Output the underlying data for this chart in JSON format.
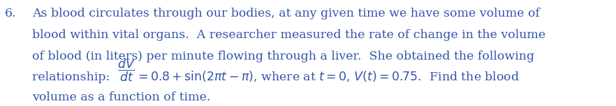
{
  "number": "6.",
  "line1": "As blood circulates through our bodies, at any given time we have some volume of",
  "line2": "blood within vital organs.  A researcher measured the rate of change in the volume",
  "line3": "of blood (in liters) per minute flowing through a liver.  She obtained the following",
  "line4_pre": "relationship:  ",
  "line4_frac": "$\\dfrac{dV}{dt}$",
  "line4_post": "$= 0.8 + \\sin(2\\pi t - \\pi)$, where at $t = 0$, $V(t) = 0.75$.  Find the blood",
  "line5": "volume as a function of time.",
  "text_color": "#3355aa",
  "bg_color": "#ffffff",
  "fontsize": 12.5,
  "font_family": "serif"
}
